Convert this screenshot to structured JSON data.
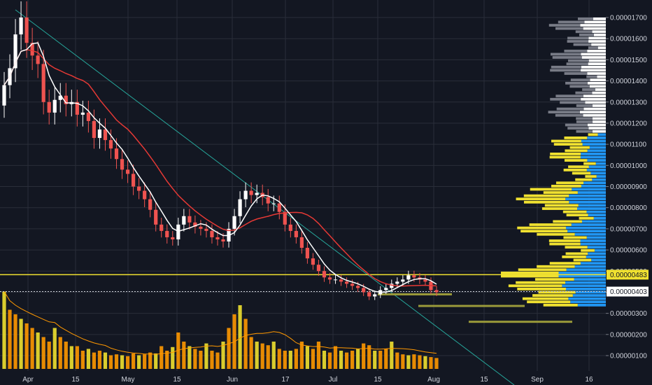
{
  "chart_data": {
    "type": "candlestick",
    "y_axis": {
      "range": [
        7.5e-07,
        1.72e-05
      ],
      "ticks": [
        "0.00001700",
        "0.00001600",
        "0.00001500",
        "0.00001400",
        "0.00001300",
        "0.00001200",
        "0.00001100",
        "0.00001000",
        "0.00000900",
        "0.00000800",
        "0.00000700",
        "0.00000600",
        "0.00000500",
        "0.00000400",
        "0.00000300",
        "0.00000200",
        "0.00000100"
      ]
    },
    "x_axis": {
      "ticks": [
        "Apr",
        "15",
        "May",
        "15",
        "Jun",
        "17",
        "Jul",
        "15",
        "Aug",
        "15",
        "Sep",
        "16"
      ]
    },
    "price_labels": [
      {
        "value": "0.00000483",
        "bg": "#f0e130",
        "fg": "#131722"
      },
      {
        "value": "0.00000403",
        "bg": "#ffffff",
        "fg": "#131722"
      }
    ],
    "candles_close": [
      1.38e-05,
      1.46e-05,
      1.62e-05,
      1.7e-05,
      1.58e-05,
      1.52e-05,
      1.48e-05,
      1.3e-05,
      1.25e-05,
      1.31e-05,
      1.33e-05,
      1.29e-05,
      1.3e-05,
      1.24e-05,
      1.25e-05,
      1.21e-05,
      1.13e-05,
      1.17e-05,
      1.12e-05,
      1.08e-05,
      1.03e-05,
      9.8e-06,
      9.6e-06,
      9e-06,
      8.8e-06,
      8.4e-06,
      7.9e-06,
      7.2e-06,
      6.9e-06,
      6.6e-06,
      6.5e-06,
      7.2e-06,
      7.6e-06,
      7.3e-06,
      7.1e-06,
      7e-06,
      6.9e-06,
      6.6e-06,
      6.5e-06,
      6.4e-06,
      7e-06,
      7.6e-06,
      8.4e-06,
      8.8e-06,
      8.6e-06,
      8.7e-06,
      8.5e-06,
      8.2e-06,
      8.2e-06,
      7.8e-06,
      7.2e-06,
      6.9e-06,
      6.6e-06,
      6.1e-06,
      5.6e-06,
      5.3e-06,
      5e-06,
      4.7e-06,
      4.6e-06,
      4.6e-06,
      4.5e-06,
      4.4e-06,
      4.3e-06,
      4.2e-06,
      4e-06,
      3.8e-06,
      3.9e-06,
      4.1e-06,
      4.2e-06,
      4.4e-06,
      4.5e-06,
      4.6e-06,
      4.8e-06,
      4.7e-06,
      4.6e-06,
      4.5e-06,
      4.1e-06,
      4e-06
    ],
    "volume_rel": [
      0.85,
      0.65,
      0.6,
      0.55,
      0.5,
      0.45,
      0.4,
      0.35,
      0.3,
      0.45,
      0.35,
      0.3,
      0.25,
      0.25,
      0.2,
      0.22,
      0.18,
      0.2,
      0.18,
      0.15,
      0.16,
      0.15,
      0.14,
      0.17,
      0.15,
      0.16,
      0.18,
      0.17,
      0.25,
      0.2,
      0.24,
      0.4,
      0.3,
      0.25,
      0.22,
      0.2,
      0.28,
      0.2,
      0.18,
      0.3,
      0.45,
      0.6,
      0.7,
      0.55,
      0.35,
      0.3,
      0.28,
      0.26,
      0.3,
      0.22,
      0.2,
      0.2,
      0.22,
      0.3,
      0.25,
      0.22,
      0.3,
      0.2,
      0.18,
      0.25,
      0.2,
      0.18,
      0.2,
      0.22,
      0.28,
      0.26,
      0.2,
      0.2,
      0.22,
      0.3,
      0.18,
      0.16,
      0.15,
      0.16,
      0.15,
      0.14,
      0.13,
      0.12
    ],
    "annotations": {
      "horizontal_line_value": 4.83e-06,
      "dotted_line_value": 4.03e-06,
      "support_segments": [
        {
          "from": "Jul 15",
          "to": "Aug 1",
          "value": 3.9e-06
        },
        {
          "from": "Aug 1",
          "to": "Aug 15",
          "value": 3.35e-06
        },
        {
          "from": "Aug 15",
          "to": "Sep 16",
          "value": 2.6e-06
        }
      ]
    },
    "colors": {
      "background": "#131722",
      "up": "#ffffff",
      "down": "#ef5350",
      "ma_fast": "#ffffff",
      "ma_slow": "#e53935",
      "trendline": "#26a69a",
      "hline": "#f0e130",
      "profile_blue": "#2196f3",
      "profile_yellow": "#f0e130",
      "profile_white": "#ffffff",
      "profile_gray": "#787b86",
      "volume": "#ff9800"
    }
  }
}
